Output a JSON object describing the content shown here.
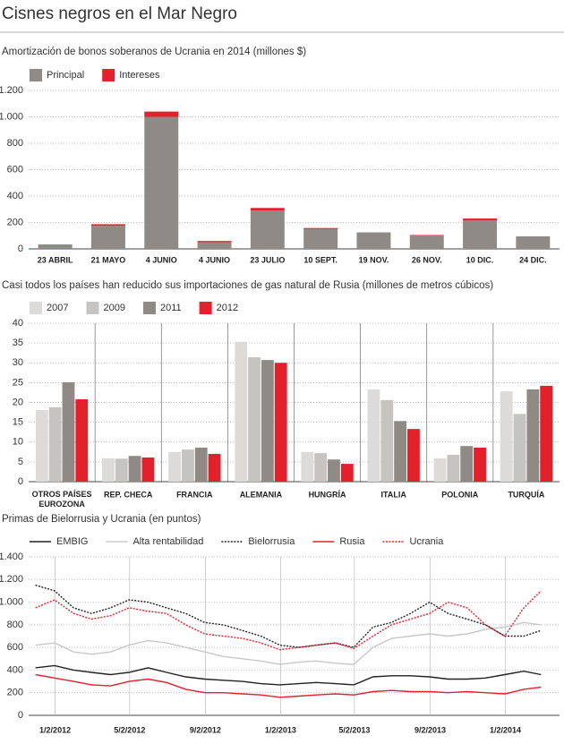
{
  "title": "Cisnes negros en el Mar Negro",
  "chart_data": [
    {
      "type": "bar",
      "stacked": true,
      "grid": true,
      "title": "Amortización de bonos soberanos de Ucrania en 2014 (millones $)",
      "categories": [
        "23 ABRIL",
        "21 MAYO",
        "4 JUNIO",
        "4 JUNIO",
        "23 JULIO",
        "10 SEPT.",
        "19 NOV.",
        "26 NOV.",
        "10 DIC.",
        "24 DIC."
      ],
      "series": [
        {
          "name": "Principal",
          "color": "#8f8a85",
          "values": [
            30,
            175,
            1000,
            50,
            290,
            150,
            125,
            100,
            215,
            95
          ]
        },
        {
          "name": "Intereses",
          "color": "#e3212d",
          "values": [
            3,
            12,
            40,
            10,
            20,
            8,
            0,
            5,
            15,
            0
          ]
        }
      ],
      "ylim": [
        0,
        1200
      ],
      "yticks": [
        0,
        200,
        400,
        600,
        800,
        {
          "value": 1000,
          "label": "1.000"
        },
        {
          "value": 1200,
          "label": "1.200"
        }
      ]
    },
    {
      "type": "bar",
      "stacked": false,
      "grid": true,
      "title": "Casi todos los países han reducido sus importaciones de gas natural de Rusia (millones de metros cúbicos)",
      "categories": [
        "OTROS PAÍSES EUROZONA",
        "REP. CHECA",
        "FRANCIA",
        "ALEMANIA",
        "HUNGRÍA",
        "ITALIA",
        "POLONIA",
        "TURQUÍA"
      ],
      "series": [
        {
          "name": "2007",
          "color": "#dcdbda",
          "values": [
            18.1,
            5.9,
            7.5,
            35.3,
            7.5,
            23.3,
            5.9,
            22.8
          ]
        },
        {
          "name": "2009",
          "color": "#c6c4c1",
          "values": [
            18.8,
            5.8,
            8.1,
            31.4,
            7.2,
            20.6,
            6.8,
            17.1
          ]
        },
        {
          "name": "2011",
          "color": "#8f8a85",
          "values": [
            25.1,
            6.5,
            8.6,
            30.7,
            5.6,
            15.3,
            9.0,
            23.3
          ]
        },
        {
          "name": "2012",
          "color": "#e3212d",
          "values": [
            20.8,
            6.1,
            7.0,
            30.0,
            4.5,
            13.3,
            8.6,
            24.2
          ]
        }
      ],
      "ylim": [
        0,
        40
      ],
      "yticks": [
        0,
        5,
        10,
        15,
        20,
        25,
        30,
        35,
        40
      ]
    },
    {
      "type": "line",
      "grid": true,
      "title": "Primas de Bielorrusia y Ucrania (en puntos)",
      "x": [
        "2011-12-01",
        "2012-01-01",
        "2012-02-01",
        "2012-03-01",
        "2012-04-01",
        "2012-05-01",
        "2012-06-01",
        "2012-07-01",
        "2012-08-01",
        "2012-09-01",
        "2012-10-01",
        "2012-11-01",
        "2012-12-01",
        "2013-01-01",
        "2013-02-01",
        "2013-03-01",
        "2013-04-01",
        "2013-05-01",
        "2013-06-01",
        "2013-07-01",
        "2013-08-01",
        "2013-09-01",
        "2013-10-01",
        "2013-11-01",
        "2013-12-01",
        "2014-01-01",
        "2014-02-01",
        "2014-03-01"
      ],
      "series": [
        {
          "name": "EMBIG",
          "color": "#222222",
          "dash": false,
          "values": [
            420,
            440,
            400,
            380,
            360,
            380,
            420,
            380,
            340,
            320,
            310,
            300,
            280,
            270,
            280,
            290,
            280,
            270,
            340,
            350,
            350,
            340,
            320,
            320,
            330,
            360,
            390,
            360
          ]
        },
        {
          "name": "Alta rentabilidad",
          "color": "#c8c8c8",
          "dash": false,
          "values": [
            620,
            640,
            560,
            540,
            560,
            620,
            660,
            640,
            600,
            560,
            520,
            500,
            480,
            450,
            470,
            480,
            460,
            450,
            600,
            680,
            700,
            720,
            700,
            720,
            760,
            780,
            820,
            800
          ]
        },
        {
          "name": "Bielorrusia",
          "color": "#222222",
          "dash": true,
          "values": [
            1150,
            1100,
            950,
            900,
            950,
            1020,
            1000,
            950,
            900,
            820,
            800,
            750,
            700,
            620,
            600,
            620,
            640,
            600,
            780,
            820,
            900,
            1000,
            900,
            850,
            800,
            700,
            700,
            750
          ]
        },
        {
          "name": "Rusia",
          "color": "#e3212d",
          "dash": false,
          "values": [
            360,
            330,
            300,
            270,
            260,
            300,
            320,
            290,
            230,
            200,
            200,
            190,
            180,
            160,
            170,
            180,
            190,
            180,
            210,
            220,
            210,
            210,
            200,
            210,
            200,
            190,
            230,
            250
          ]
        },
        {
          "name": "Ucrania",
          "color": "#e3212d",
          "dash": true,
          "values": [
            950,
            1020,
            900,
            850,
            880,
            950,
            920,
            900,
            800,
            720,
            700,
            680,
            640,
            580,
            600,
            620,
            640,
            590,
            700,
            800,
            850,
            900,
            1000,
            950,
            800,
            700,
            950,
            1100
          ]
        }
      ],
      "xlim": [
        "2011-11-20",
        "2014-03-31"
      ],
      "xticks": [
        {
          "value": "2012-01-02",
          "label": "1/2/2012"
        },
        {
          "value": "2012-05-02",
          "label": "5/2/2012"
        },
        {
          "value": "2012-09-02",
          "label": "9/2/2012"
        },
        {
          "value": "2013-01-02",
          "label": "1/2/2013"
        },
        {
          "value": "2013-05-02",
          "label": "5/2/2013"
        },
        {
          "value": "2013-09-02",
          "label": "9/2/2013"
        },
        {
          "value": "2014-01-02",
          "label": "1/2/2014"
        }
      ],
      "ylim": [
        0,
        1400
      ],
      "yticks": [
        0,
        200,
        400,
        600,
        800,
        {
          "value": 1000,
          "label": "1.000"
        },
        {
          "value": 1200,
          "label": "1.200"
        },
        {
          "value": 1400,
          "label": "1.400"
        }
      ]
    }
  ]
}
